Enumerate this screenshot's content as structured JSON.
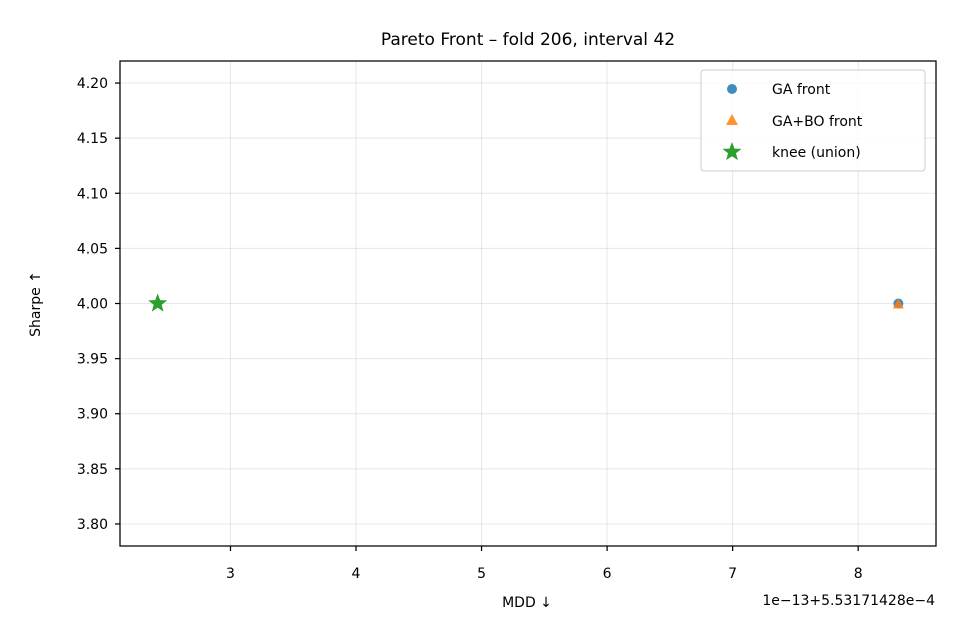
{
  "chart_data": {
    "type": "scatter",
    "title": "Pareto Front – fold 206, interval 42",
    "xlabel": "MDD ↓",
    "ylabel": "Sharpe ↑",
    "offset_text": "1e−13+5.53171428e−4",
    "x_ticks": [
      3,
      4,
      5,
      6,
      7,
      8
    ],
    "y_ticks": [
      3.8,
      3.85,
      3.9,
      3.95,
      4.0,
      4.05,
      4.1,
      4.15,
      4.2
    ],
    "x_tick_labels": [
      "3",
      "4",
      "5",
      "6",
      "7",
      "8"
    ],
    "y_tick_labels": [
      "3.80",
      "3.85",
      "3.90",
      "3.95",
      "4.00",
      "4.05",
      "4.10",
      "4.15",
      "4.20"
    ],
    "xlim": [
      2.12,
      8.62
    ],
    "ylim": [
      3.78,
      4.22
    ],
    "grid": true,
    "legend_position": "top-right",
    "series": [
      {
        "name": "GA front",
        "marker": "circle",
        "color": "#1f77b4",
        "points": [
          {
            "x": 8.32,
            "y": 4.0
          }
        ]
      },
      {
        "name": "GA+BO front",
        "marker": "triangle",
        "color": "#ff7f0e",
        "points": [
          {
            "x": 8.32,
            "y": 4.0
          }
        ]
      },
      {
        "name": "knee (union)",
        "marker": "star",
        "color": "#2ca02c",
        "points": [
          {
            "x": 2.42,
            "y": 4.0
          }
        ]
      }
    ]
  }
}
